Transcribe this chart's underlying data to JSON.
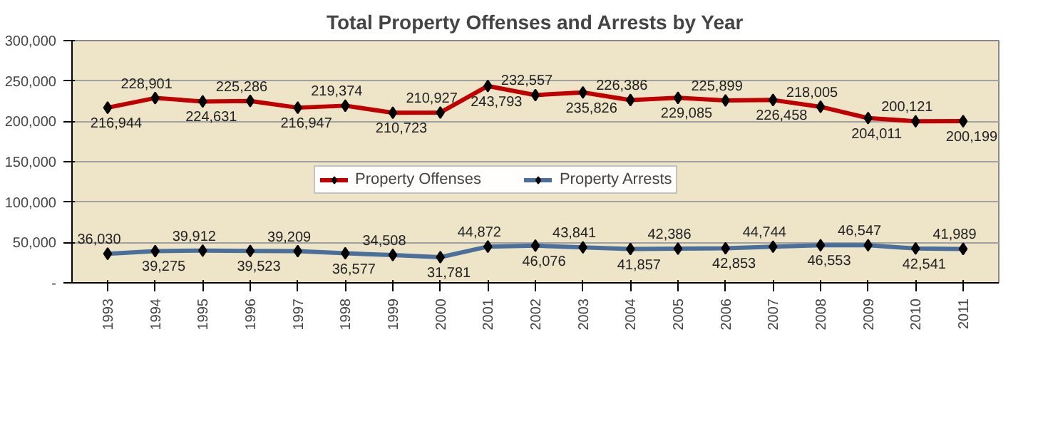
{
  "chart_data": {
    "type": "line",
    "title": "Total Property Offenses and Arrests by Year",
    "categories": [
      "1993",
      "1994",
      "1995",
      "1996",
      "1997",
      "1998",
      "1999",
      "2000",
      "2001",
      "2002",
      "2003",
      "2004",
      "2005",
      "2006",
      "2007",
      "2008",
      "2009",
      "2010",
      "2011"
    ],
    "series": [
      {
        "name": "Property Offenses",
        "color": "#c00000",
        "values": [
          216944,
          228901,
          224631,
          225286,
          216947,
          219374,
          210723,
          210927,
          243793,
          232557,
          235826,
          226386,
          229085,
          225899,
          226458,
          218005,
          204011,
          200121,
          200199
        ],
        "value_labels": [
          "216,944",
          "228,901",
          "224,631",
          "225,286",
          "216,947",
          "219,374",
          "210,723",
          "210,927",
          "243,793",
          "232,557",
          "235,826",
          "226,386",
          "229,085",
          "225,899",
          "226,458",
          "218,005",
          "204,011",
          "200,121",
          "200,199"
        ]
      },
      {
        "name": "Property Arrests",
        "color": "#4a6f9a",
        "values": [
          36030,
          39275,
          39912,
          39523,
          39209,
          36577,
          34508,
          31781,
          44872,
          46076,
          43841,
          41857,
          42386,
          42853,
          44744,
          46553,
          46547,
          42541,
          41989
        ],
        "value_labels": [
          "36,030",
          "39,275",
          "39,912",
          "39,523",
          "39,209",
          "36,577",
          "34,508",
          "31,781",
          "44,872",
          "46,076",
          "43,841",
          "41,857",
          "42,386",
          "42,853",
          "44,744",
          "46,553",
          "46,547",
          "42,541",
          "41,989"
        ]
      }
    ],
    "ylim": [
      0,
      300000
    ],
    "yticks": [
      {
        "value": 0,
        "label": "-"
      },
      {
        "value": 50000,
        "label": "50,000"
      },
      {
        "value": 100000,
        "label": "100,000"
      },
      {
        "value": 150000,
        "label": "150,000"
      },
      {
        "value": 200000,
        "label": "200,000"
      },
      {
        "value": 250000,
        "label": "250,000"
      },
      {
        "value": 300000,
        "label": "300,000"
      }
    ],
    "grid": "y",
    "legend": "center",
    "marker": "diamond",
    "line_style": "solid"
  }
}
